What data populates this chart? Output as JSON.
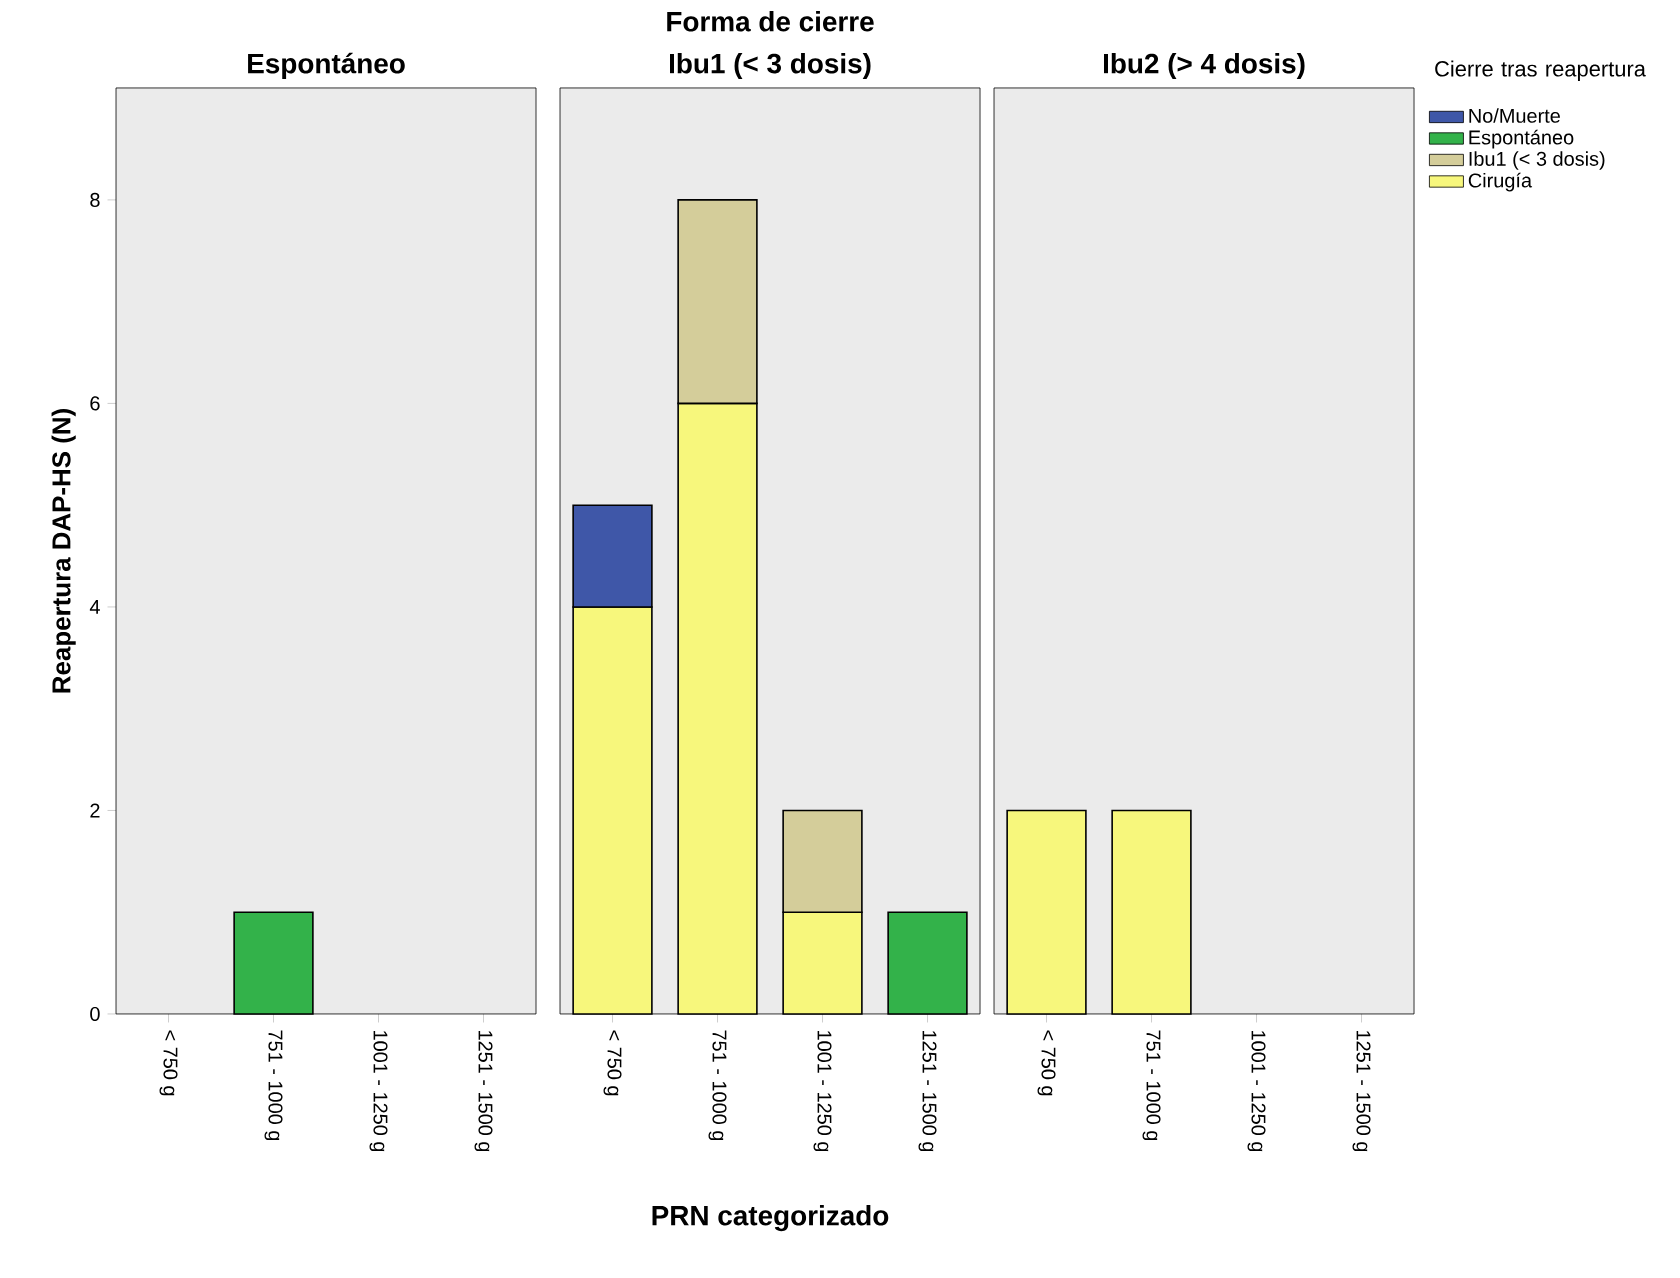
{
  "chart_data": [
    {
      "type": "bar",
      "stacked": true,
      "title": "Espontáneo",
      "ylabel": "Reapertura DAP-HS (N)",
      "categories": [
        "< 750 g",
        "751 - 1000 g",
        "1001 - 1250 g",
        "1251 - 1500 g"
      ],
      "ylim": [
        0,
        9.1
      ],
      "yticks": [
        0,
        2,
        4,
        6,
        8
      ],
      "grid": false,
      "series": [
        {
          "color": "#f7f77c",
          "values": [
            null,
            null,
            null,
            null
          ]
        },
        {
          "color": "#d4cd9a",
          "values": [
            null,
            null,
            null,
            null
          ]
        },
        {
          "color": "#33b24a",
          "values": [
            null,
            1,
            null,
            null
          ]
        },
        {
          "color": "#3f57a8",
          "values": [
            null,
            null,
            null,
            null
          ]
        }
      ]
    },
    {
      "type": "bar",
      "stacked": true,
      "title": "Ibu1 (< 3 dosis)",
      "annotations": [
        "Forma de cierre"
      ],
      "xlabel": "PRN categorizado",
      "categories": [
        "< 750 g",
        "751 - 1000 g",
        "1001 - 1250 g",
        "1251 - 1500 g"
      ],
      "ylim": [
        0,
        9.1
      ],
      "tick_labels": "x",
      "grid": false,
      "series": [
        {
          "color": "#f7f77c",
          "values": [
            4,
            6,
            1,
            null
          ]
        },
        {
          "color": "#d4cd9a",
          "values": [
            null,
            2,
            1,
            null
          ]
        },
        {
          "color": "#33b24a",
          "values": [
            null,
            null,
            null,
            1
          ]
        },
        {
          "color": "#3f57a8",
          "values": [
            1,
            null,
            null,
            null
          ]
        }
      ]
    },
    {
      "type": "bar",
      "stacked": true,
      "title": "Ibu2 (> 4 dosis)",
      "legend_title": "Cierre tras reapertura",
      "legend": "right",
      "categories": [
        "< 750 g",
        "751 - 1000 g",
        "1001 - 1250 g",
        "1251 - 1500 g"
      ],
      "ylim": [
        0,
        9.1
      ],
      "tick_labels": "x",
      "grid": false,
      "series": [
        {
          "name": "Cirugía",
          "color": "#f7f77c",
          "values": [
            2,
            2,
            null,
            null
          ]
        },
        {
          "name": "Ibu1 (< 3 dosis)",
          "color": "#d4cd9a",
          "values": [
            null,
            null,
            null,
            null
          ]
        },
        {
          "name": "Espontáneo",
          "color": "#33b24a",
          "values": [
            null,
            null,
            null,
            null
          ]
        },
        {
          "name": "No/Muerte",
          "color": "#3f57a8",
          "values": [
            null,
            null,
            null,
            null
          ]
        }
      ]
    }
  ]
}
